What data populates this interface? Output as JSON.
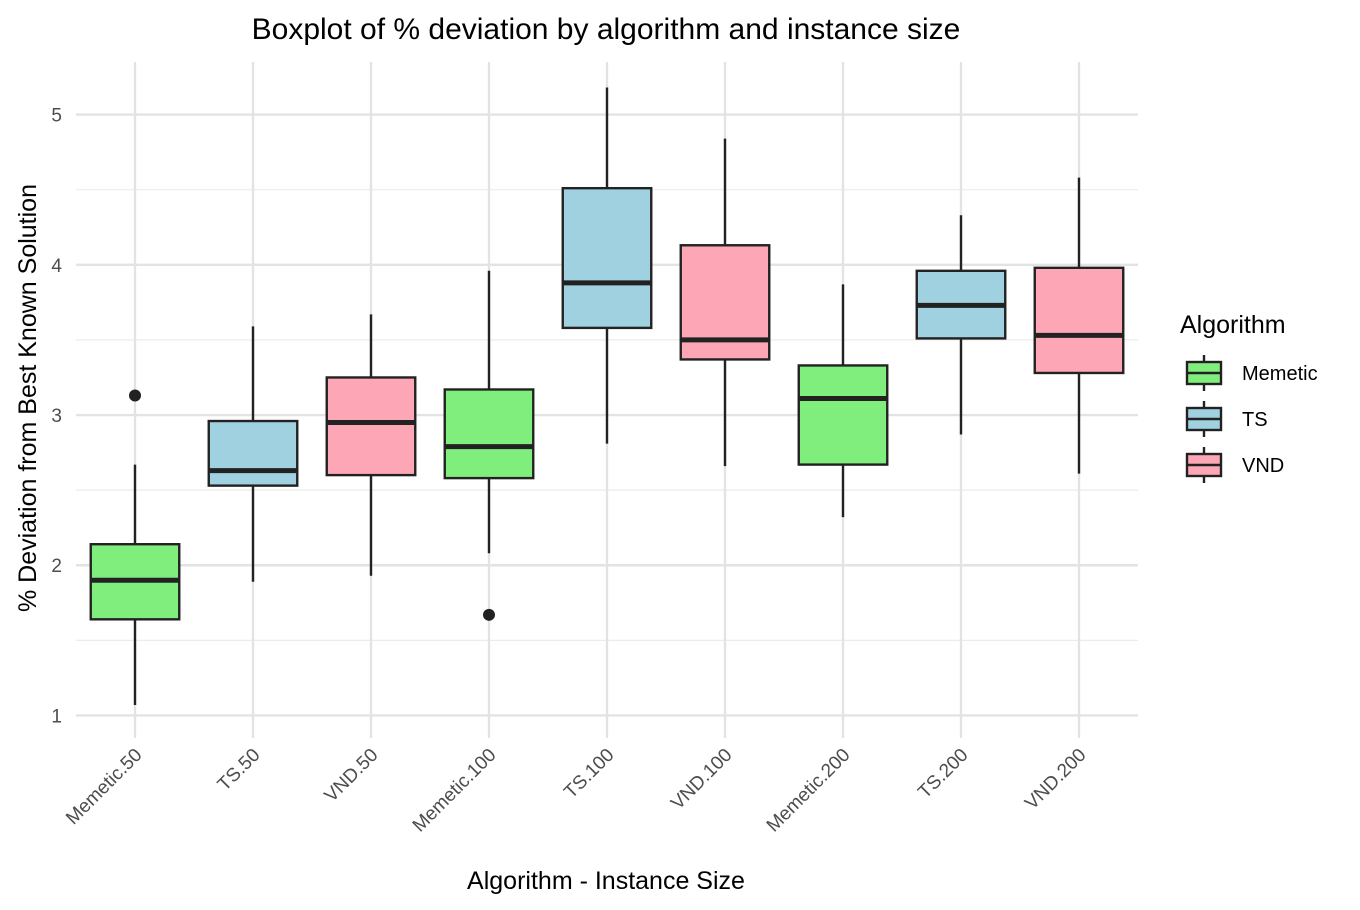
{
  "chart_data": {
    "type": "boxplot",
    "title": "Boxplot of % deviation by algorithm and instance size",
    "xlabel": "Algorithm - Instance Size",
    "ylabel": "% Deviation from Best Known Solution",
    "ylim": [
      0.85,
      5.35
    ],
    "yticks": [
      1,
      2,
      3,
      4,
      5
    ],
    "grid": true,
    "legend": {
      "title": "Algorithm",
      "position": "right",
      "entries": [
        {
          "name": "Memetic",
          "color": "#80ee7d"
        },
        {
          "name": "TS",
          "color": "#9fd1e1"
        },
        {
          "name": "VND",
          "color": "#fda7b6"
        }
      ]
    },
    "categories": [
      "Memetic.50",
      "TS.50",
      "VND.50",
      "Memetic.100",
      "TS.100",
      "VND.100",
      "Memetic.200",
      "TS.200",
      "VND.200"
    ],
    "boxes": [
      {
        "category": "Memetic.50",
        "algorithm": "Memetic",
        "whisker_low": 1.07,
        "q1": 1.64,
        "median": 1.9,
        "q3": 2.14,
        "whisker_high": 2.67,
        "outliers": [
          3.13
        ]
      },
      {
        "category": "TS.50",
        "algorithm": "TS",
        "whisker_low": 1.89,
        "q1": 2.53,
        "median": 2.63,
        "q3": 2.96,
        "whisker_high": 3.59,
        "outliers": []
      },
      {
        "category": "VND.50",
        "algorithm": "VND",
        "whisker_low": 1.93,
        "q1": 2.6,
        "median": 2.95,
        "q3": 3.25,
        "whisker_high": 3.67,
        "outliers": []
      },
      {
        "category": "Memetic.100",
        "algorithm": "Memetic",
        "whisker_low": 2.08,
        "q1": 2.58,
        "median": 2.79,
        "q3": 3.17,
        "whisker_high": 3.96,
        "outliers": [
          1.67
        ]
      },
      {
        "category": "TS.100",
        "algorithm": "TS",
        "whisker_low": 2.81,
        "q1": 3.58,
        "median": 3.88,
        "q3": 4.51,
        "whisker_high": 5.18,
        "outliers": []
      },
      {
        "category": "VND.100",
        "algorithm": "VND",
        "whisker_low": 2.66,
        "q1": 3.37,
        "median": 3.5,
        "q3": 4.13,
        "whisker_high": 4.84,
        "outliers": []
      },
      {
        "category": "Memetic.200",
        "algorithm": "Memetic",
        "whisker_low": 2.32,
        "q1": 2.67,
        "median": 3.11,
        "q3": 3.33,
        "whisker_high": 3.87,
        "outliers": []
      },
      {
        "category": "TS.200",
        "algorithm": "TS",
        "whisker_low": 2.87,
        "q1": 3.51,
        "median": 3.73,
        "q3": 3.96,
        "whisker_high": 4.33,
        "outliers": []
      },
      {
        "category": "VND.200",
        "algorithm": "VND",
        "whisker_low": 2.61,
        "q1": 3.28,
        "median": 3.53,
        "q3": 3.98,
        "whisker_high": 4.58,
        "outliers": []
      }
    ]
  }
}
